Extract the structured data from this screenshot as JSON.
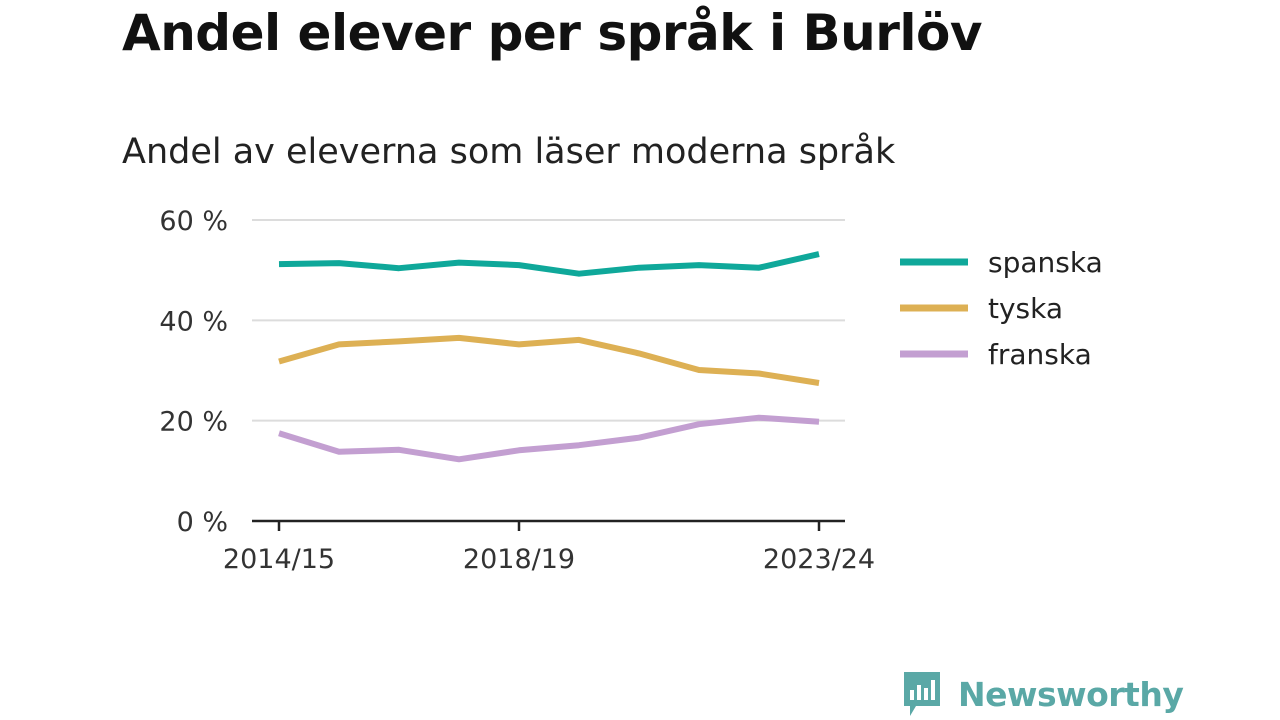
{
  "title": "Andel elever per språk i Burlöv",
  "subtitle": "Andel av eleverna som läser moderna språk",
  "brand": {
    "name": "Newsworthy",
    "color": "#5aa8a6",
    "icon": "newsworthy-logo-icon"
  },
  "chart_data": {
    "type": "line",
    "x": [
      "2014/15",
      "2015/16",
      "2016/17",
      "2017/18",
      "2018/19",
      "2019/20",
      "2020/21",
      "2021/22",
      "2022/23",
      "2023/24"
    ],
    "x_tick_labels": [
      "2014/15",
      "2018/19",
      "2023/24"
    ],
    "y_ticks": [
      0,
      20,
      40,
      60
    ],
    "y_tick_labels": [
      "0 %",
      "20 %",
      "40 %",
      "60 %"
    ],
    "ylim": [
      0,
      60
    ],
    "grid": true,
    "legend_position": "right",
    "series": [
      {
        "name": "spanska",
        "color": "#0fa89a",
        "values": [
          51.2,
          51.4,
          50.4,
          51.5,
          51.0,
          49.3,
          50.5,
          51.0,
          50.5,
          53.2
        ]
      },
      {
        "name": "tyska",
        "color": "#ddb054",
        "values": [
          31.8,
          35.2,
          35.8,
          36.5,
          35.2,
          36.1,
          33.4,
          30.1,
          29.4,
          27.5
        ]
      },
      {
        "name": "franska",
        "color": "#c39fd1",
        "values": [
          17.5,
          13.8,
          14.2,
          12.3,
          14.1,
          15.1,
          16.6,
          19.3,
          20.6,
          19.8
        ]
      }
    ]
  }
}
